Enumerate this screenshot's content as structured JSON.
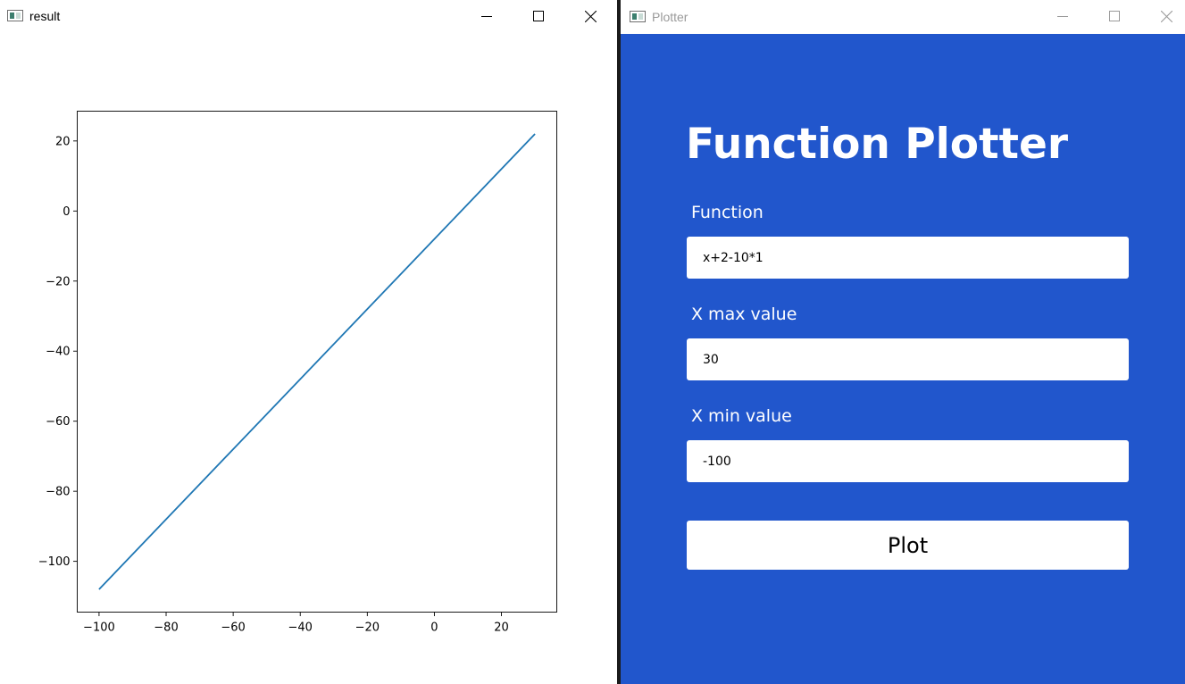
{
  "result_window": {
    "title": "result",
    "controls": [
      "minimize-icon",
      "maximize-icon",
      "close-icon"
    ]
  },
  "plotter_window": {
    "title": "Plotter",
    "controls": [
      "minimize-icon",
      "maximize-icon",
      "close-icon"
    ],
    "heading": "Function Plotter",
    "function_label": "Function",
    "function_value": "x+2-10*1",
    "xmax_label": "X max value",
    "xmax_value": "30",
    "xmin_label": "X min value",
    "xmin_value": "-100",
    "plot_button_label": "Plot"
  },
  "colors": {
    "plotter_background": "#2156cc",
    "line_color": "#1f77b4"
  },
  "chart_data": {
    "type": "line",
    "title": "",
    "xlabel": "",
    "ylabel": "",
    "x": [
      -100,
      30
    ],
    "series": [
      {
        "values": [
          -108,
          22
        ]
      }
    ],
    "xlim": [
      -106.5,
      36.5
    ],
    "ylim": [
      -114.5,
      28.5
    ],
    "xticks": [
      -100,
      -80,
      -60,
      -40,
      -20,
      0,
      20
    ],
    "yticks": [
      20,
      0,
      -20,
      -40,
      -60,
      -80,
      -100
    ],
    "xtick_labels": [
      "−100",
      "−80",
      "−60",
      "−40",
      "−20",
      "0",
      "20"
    ],
    "ytick_labels": [
      "20",
      "0",
      "−20",
      "−40",
      "−60",
      "−80",
      "−100"
    ],
    "grid": false
  }
}
